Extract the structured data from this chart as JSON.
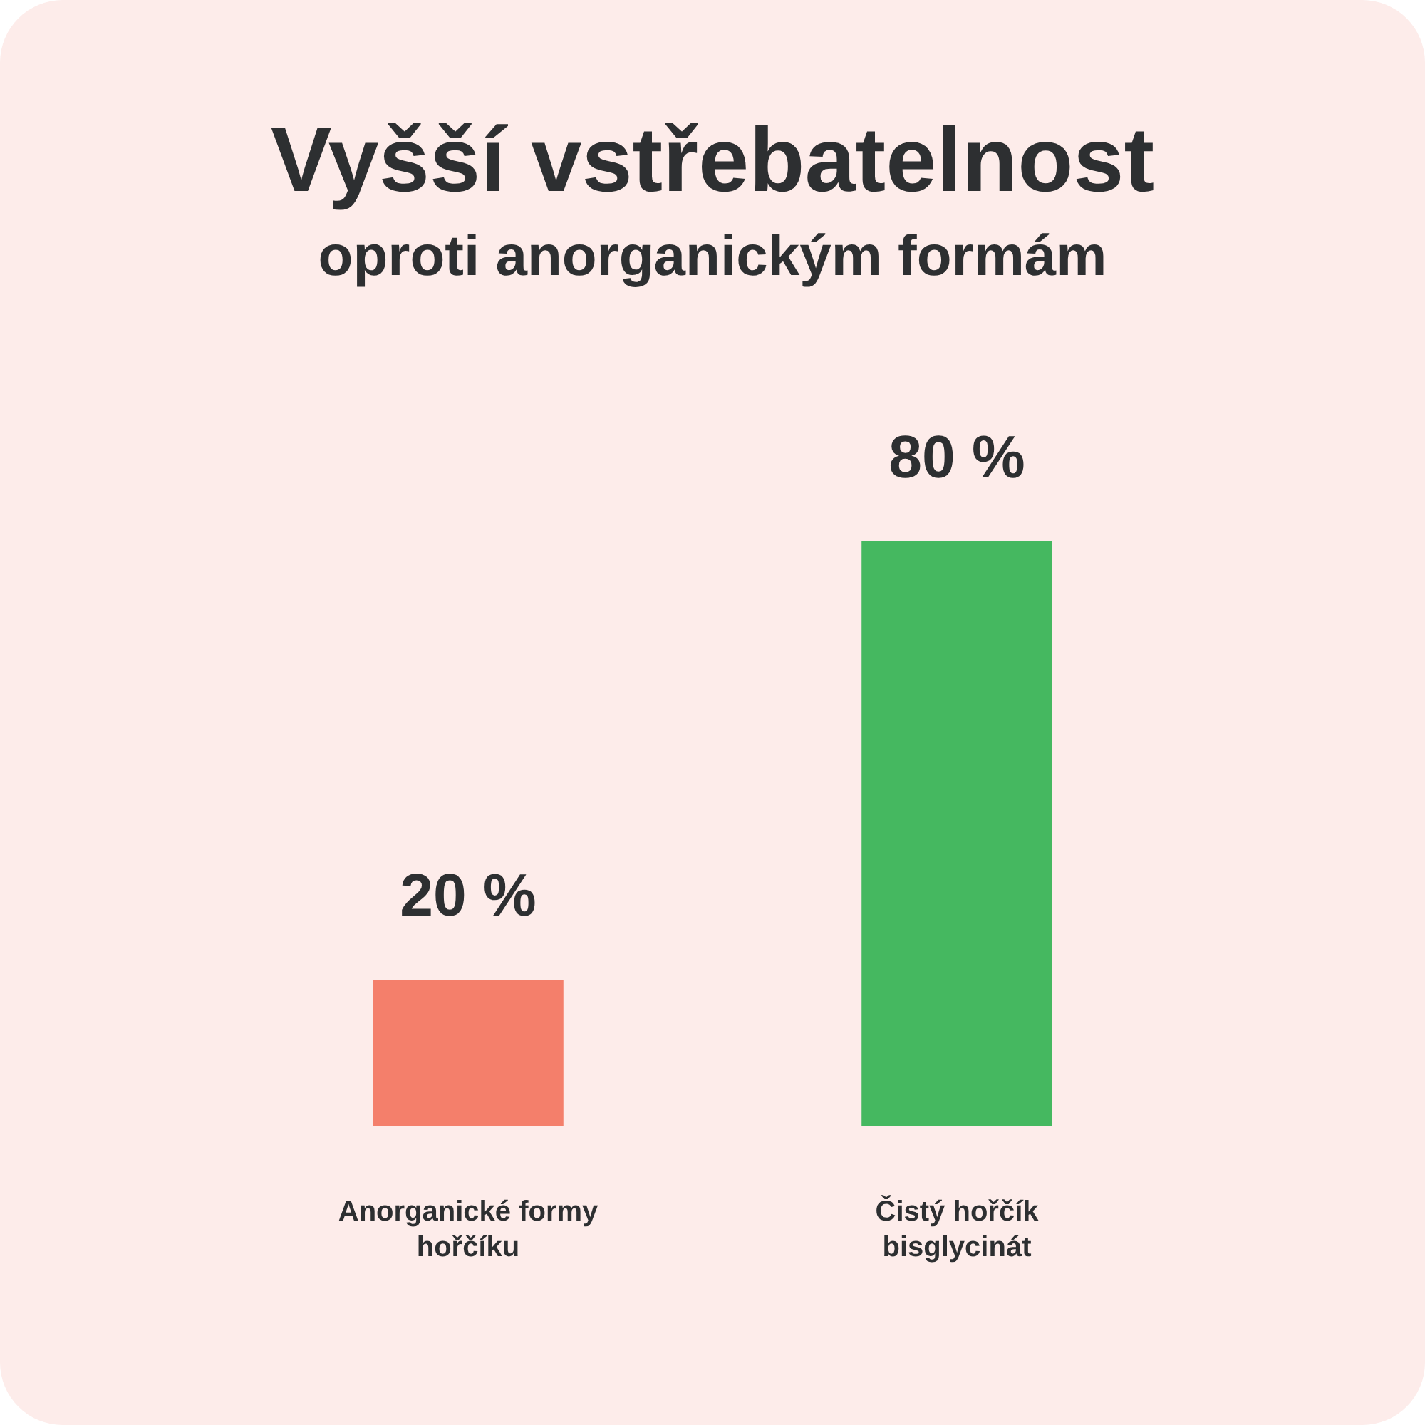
{
  "chart_data": {
    "type": "bar",
    "title": "Vyšší vstřebatelnost",
    "subtitle": "oproti anorganickým formám",
    "categories": [
      "Anorganické formy\nhořčíku",
      "Čistý hořčík\nbisglycinát"
    ],
    "values": [
      20,
      80
    ],
    "colors": [
      "#f47f6b",
      "#45b860"
    ],
    "value_labels": [
      "20 %",
      "80 %"
    ]
  }
}
